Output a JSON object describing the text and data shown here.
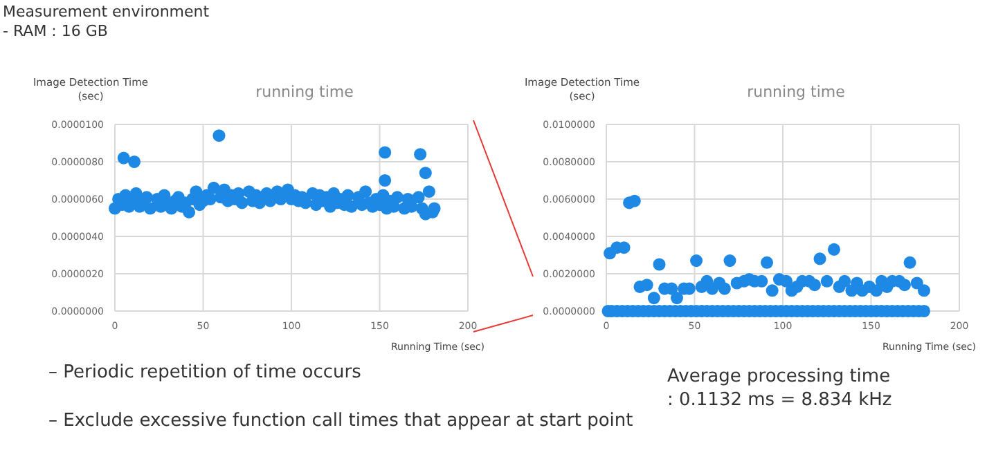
{
  "chart_data": [
    {
      "type": "scatter",
      "title": "running time",
      "xlabel": "Running Time (sec)",
      "ylabel": "Image Detection Time (sec)",
      "xlim": [
        0,
        200
      ],
      "xticks": [
        0,
        50,
        100,
        150,
        200
      ],
      "ylim": [
        0,
        1e-05
      ],
      "yticks": [
        {
          "value": 0,
          "label": "0.0000000"
        },
        {
          "value": 2e-06,
          "label": "0.0000020"
        },
        {
          "value": 4e-06,
          "label": "0.0000040"
        },
        {
          "value": 6e-06,
          "label": "0.0000060"
        },
        {
          "value": 8e-06,
          "label": "0.0000080"
        },
        {
          "value": 1e-05,
          "label": "0.0000100"
        }
      ],
      "grid": true,
      "marker": "circle",
      "legend": false,
      "annotations": [
        "Measurement environment",
        "- RAM : 16 GB",
        "–  Periodic repetition of time occurs",
        "–  Exclude excessive function call times that appear at start point"
      ],
      "series": [
        {
          "color": "#1e88e5",
          "x": [
            0,
            2,
            4,
            6,
            8,
            10,
            12,
            14,
            16,
            18,
            20,
            24,
            26,
            28,
            30,
            32,
            34,
            36,
            38,
            40,
            42,
            44,
            46,
            48,
            50,
            52,
            54,
            56,
            60,
            62,
            64,
            66,
            68,
            70,
            72,
            76,
            78,
            80,
            82,
            86,
            88,
            92,
            94,
            98,
            100,
            102,
            104,
            106,
            108,
            112,
            114,
            116,
            118,
            120,
            122,
            124,
            126,
            128,
            130,
            132,
            134,
            138,
            140,
            142,
            144,
            146,
            148,
            150,
            152,
            154,
            156,
            158,
            160,
            164,
            166,
            168,
            172,
            174,
            176,
            178,
            180,
            5,
            11,
            59,
            153,
            153,
            173,
            176,
            181
          ],
          "values": [
            5.5e-06,
            6e-06,
            5.7e-06,
            6.2e-06,
            5.6e-06,
            5.9e-06,
            6.3e-06,
            5.6e-06,
            5.8e-06,
            6.1e-06,
            5.5e-06,
            6e-06,
            5.6e-06,
            6.2e-06,
            5.7e-06,
            5.5e-06,
            5.9e-06,
            6.1e-06,
            5.6e-06,
            5.8e-06,
            5.3e-06,
            6e-06,
            6.4e-06,
            5.7e-06,
            5.9e-06,
            6.2e-06,
            6e-06,
            6.6e-06,
            6.1e-06,
            6.5e-06,
            5.9e-06,
            6.2e-06,
            6e-06,
            6.3e-06,
            5.8e-06,
            6.4e-06,
            5.9e-06,
            6.2e-06,
            5.8e-06,
            6.3e-06,
            5.9e-06,
            6.4e-06,
            6e-06,
            6.5e-06,
            6e-06,
            6.2e-06,
            5.9e-06,
            6.1e-06,
            5.8e-06,
            6.3e-06,
            5.7e-06,
            6.2e-06,
            5.9e-06,
            6.1e-06,
            5.6e-06,
            6.3e-06,
            5.8e-06,
            6e-06,
            5.7e-06,
            6.2e-06,
            5.6e-06,
            6.1e-06,
            5.7e-06,
            6.4e-06,
            5.8e-06,
            5.6e-06,
            6e-06,
            5.7e-06,
            6.2e-06,
            5.5e-06,
            5.9e-06,
            5.6e-06,
            6.1e-06,
            5.5e-06,
            6e-06,
            5.6e-06,
            6.1e-06,
            5.5e-06,
            5.2e-06,
            6.4e-06,
            5.3e-06,
            8.2e-06,
            8e-06,
            9.4e-06,
            8.5e-06,
            7e-06,
            8.4e-06,
            7.4e-06,
            5.5e-06
          ]
        }
      ]
    },
    {
      "type": "scatter",
      "title": "running time",
      "xlabel": "Running Time (sec)",
      "ylabel": "Image Detection Time (sec)",
      "xlim": [
        0,
        200
      ],
      "xticks": [
        0,
        50,
        100,
        150,
        200
      ],
      "ylim": [
        0,
        0.01
      ],
      "yticks": [
        {
          "value": 0,
          "label": "0.0000000"
        },
        {
          "value": 0.002,
          "label": "0.0020000"
        },
        {
          "value": 0.004,
          "label": "0.0040000"
        },
        {
          "value": 0.006,
          "label": "0.0060000"
        },
        {
          "value": 0.008,
          "label": "0.0080000"
        },
        {
          "value": 0.01,
          "label": "0.0100000"
        }
      ],
      "grid": true,
      "marker": "circle",
      "legend": false,
      "annotations": [
        "Average processing time",
        ": 0.1132 ms = 8.834 kHz"
      ],
      "series": [
        {
          "color": "#1e88e5",
          "x": [
            1,
            3,
            6,
            9,
            12,
            15,
            18,
            21,
            24,
            27,
            30,
            33,
            36,
            39,
            42,
            45,
            48,
            51,
            54,
            57,
            60,
            63,
            66,
            69,
            72,
            75,
            78,
            81,
            84,
            87,
            90,
            93,
            96,
            99,
            102,
            105,
            108,
            111,
            114,
            117,
            120,
            123,
            126,
            129,
            132,
            135,
            138,
            141,
            144,
            147,
            150,
            153,
            156,
            159,
            162,
            165,
            168,
            171,
            174,
            177,
            180,
            2,
            6,
            10,
            13,
            16,
            19,
            23,
            27,
            30,
            33,
            37,
            40,
            44,
            47,
            51,
            54,
            57,
            60,
            64,
            67,
            70,
            74,
            78,
            81,
            84,
            88,
            91,
            94,
            98,
            102,
            105,
            108,
            111,
            115,
            118,
            121,
            125,
            129,
            132,
            135,
            139,
            142,
            145,
            149,
            153,
            156,
            159,
            162,
            166,
            169,
            172,
            176,
            180
          ],
          "values": [
            0,
            0,
            0,
            0,
            0,
            0,
            0,
            0,
            0,
            0,
            0,
            0,
            0,
            0,
            0,
            0,
            0,
            0,
            0,
            0,
            0,
            0,
            0,
            0,
            0,
            0,
            0,
            0,
            0,
            0,
            0,
            0,
            0,
            0,
            0,
            0,
            0,
            0,
            0,
            0,
            0,
            0,
            0,
            0,
            0,
            0,
            0,
            0,
            0,
            0,
            0,
            0,
            0,
            0,
            0,
            0,
            0,
            0,
            0,
            0,
            0,
            0.0031,
            0.0034,
            0.0034,
            0.0058,
            0.0059,
            0.0013,
            0.0014,
            0.0007,
            0.0025,
            0.0012,
            0.0012,
            0.0007,
            0.0012,
            0.0012,
            0.0027,
            0.0013,
            0.0016,
            0.0012,
            0.0015,
            0.0012,
            0.0027,
            0.0015,
            0.0016,
            0.0017,
            0.0016,
            0.0016,
            0.0026,
            0.0011,
            0.0017,
            0.0016,
            0.0011,
            0.0013,
            0.0016,
            0.0016,
            0.0014,
            0.0028,
            0.0016,
            0.0033,
            0.0013,
            0.0016,
            0.0011,
            0.0015,
            0.0011,
            0.0013,
            0.0011,
            0.0016,
            0.0013,
            0.0016,
            0.0016,
            0.0014,
            0.0026,
            0.0015,
            0.0011
          ]
        }
      ]
    }
  ]
}
